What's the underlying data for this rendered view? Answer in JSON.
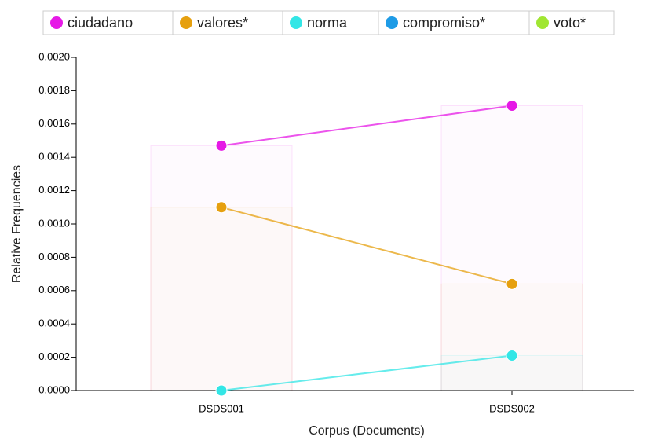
{
  "chart_data": {
    "type": "line",
    "categories": [
      "DSDS001",
      "DSDS002"
    ],
    "series": [
      {
        "name": "ciudadano",
        "color": "#e619e6",
        "values": [
          0.00147,
          0.00171
        ]
      },
      {
        "name": "valores*",
        "color": "#e6a00f",
        "values": [
          0.0011,
          0.00064
        ]
      },
      {
        "name": "norma",
        "color": "#33e6e6",
        "values": [
          0,
          0.00021
        ]
      },
      {
        "name": "compromiso*",
        "color": "#1e9be6",
        "values": [
          null,
          null
        ]
      },
      {
        "name": "voto*",
        "color": "#a0e632",
        "values": [
          null,
          null
        ]
      }
    ],
    "xlabel": "Corpus (Documents)",
    "ylabel": "Relative Frequencies",
    "ylim": [
      0,
      0.002
    ],
    "yticks": [
      {
        "value": 0,
        "label": "0.0000"
      },
      {
        "value": 0.0002,
        "label": "0.0002"
      },
      {
        "value": 0.0004,
        "label": "0.0004"
      },
      {
        "value": 0.0006,
        "label": "0.0006"
      },
      {
        "value": 0.0008,
        "label": "0.0008"
      },
      {
        "value": 0.001,
        "label": "0.0010"
      },
      {
        "value": 0.0012,
        "label": "0.0012"
      },
      {
        "value": 0.0014,
        "label": "0.0014"
      },
      {
        "value": 0.0016,
        "label": "0.0016"
      },
      {
        "value": 0.0018,
        "label": "0.0018"
      },
      {
        "value": 0.002,
        "label": "0.0020"
      }
    ],
    "legend": "top"
  }
}
